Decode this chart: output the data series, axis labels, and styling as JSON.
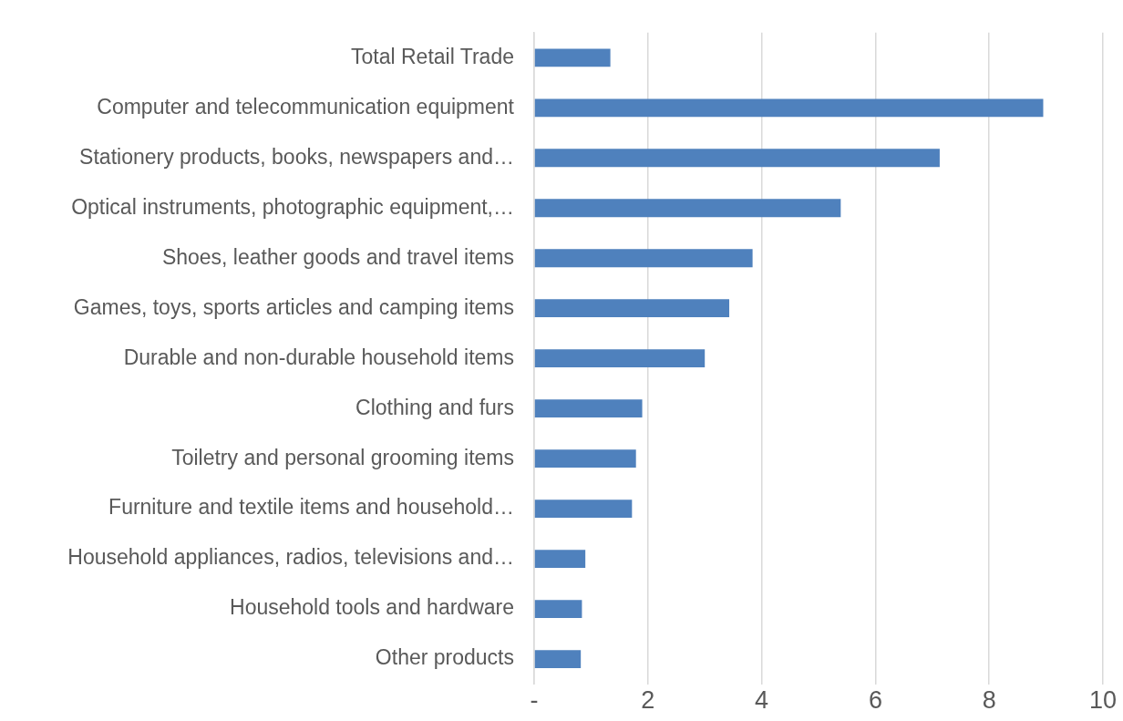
{
  "chart_data": {
    "type": "bar",
    "orientation": "horizontal",
    "categories": [
      "Total Retail Trade",
      "Computer and telecommunication equipment",
      "Stationery products, books, newspapers and…",
      "Optical instruments, photographic equipment,…",
      "Shoes, leather goods and travel items",
      "Games, toys, sports articles and camping items",
      "Durable and non-durable household items",
      "Clothing and furs",
      "Toiletry and personal grooming items",
      "Furniture and textile items and household…",
      "Household appliances, radios, televisions and…",
      "Household tools and hardware",
      "Other products"
    ],
    "values": [
      1.34,
      8.95,
      7.13,
      5.39,
      3.84,
      3.43,
      3.0,
      1.9,
      1.79,
      1.72,
      0.9,
      0.84,
      0.82
    ],
    "color": "#4f81bd",
    "xlim": [
      0,
      10
    ],
    "xticks": [
      {
        "value": 0,
        "label": "-"
      },
      2,
      4,
      6,
      8,
      10
    ],
    "grid": "x",
    "legend": false
  }
}
